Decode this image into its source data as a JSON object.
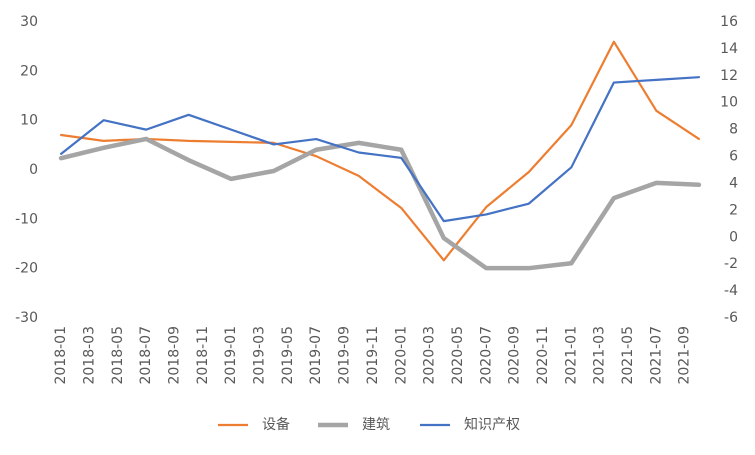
{
  "chart_data": {
    "type": "line",
    "categories": [
      "2018-01",
      null,
      "2018-03",
      null,
      "2018-05",
      null,
      "2018-07",
      null,
      "2018-09",
      null,
      "2018-11",
      null,
      "2019-01",
      null,
      "2019-03",
      null,
      "2019-05",
      null,
      "2019-07",
      null,
      "2019-09",
      null,
      "2019-11",
      null,
      "2020-01",
      null,
      "2020-03",
      null,
      "2020-05",
      null,
      "2020-07",
      null,
      "2020-09",
      null,
      "2020-11",
      null,
      "2021-01",
      null,
      "2021-03",
      null,
      "2021-05",
      null,
      "2021-07",
      null,
      "2021-09",
      null
    ],
    "series": [
      {
        "name": "设备",
        "color": "#ed7d31",
        "width": 2.2,
        "values": [
          7.1,
          null,
          null,
          5.9,
          null,
          null,
          6.3,
          null,
          null,
          5.9,
          null,
          null,
          5.7,
          null,
          null,
          5.5,
          null,
          null,
          2.8,
          null,
          null,
          -1.2,
          null,
          null,
          -7.7,
          null,
          null,
          -18.3,
          null,
          null,
          -7.5,
          null,
          null,
          -0.4,
          null,
          null,
          9.1,
          null,
          null,
          26,
          null,
          null,
          12,
          null,
          null,
          6.3
        ]
      },
      {
        "name": "建筑",
        "color": "#a5a5a5",
        "width": 4.5,
        "values": [
          2.4,
          null,
          null,
          4.5,
          null,
          null,
          6.3,
          null,
          null,
          2,
          null,
          null,
          -1.8,
          null,
          null,
          -0.2,
          null,
          null,
          4.1,
          null,
          null,
          5.5,
          null,
          null,
          4.1,
          null,
          null,
          -13.8,
          null,
          null,
          -19.9,
          null,
          null,
          -19.9,
          null,
          null,
          -18.9,
          null,
          null,
          -5.7,
          null,
          null,
          -2.6,
          null,
          null,
          -3
        ]
      },
      {
        "name": "知识产权",
        "color": "#4472c4",
        "width": 2.2,
        "axis": "y2",
        "values": [
          6.2,
          null,
          null,
          8.7,
          null,
          null,
          8,
          null,
          null,
          9.1,
          null,
          null,
          8,
          null,
          null,
          6.9,
          null,
          null,
          7.3,
          null,
          null,
          6.3,
          null,
          null,
          5.9,
          null,
          null,
          1.2,
          null,
          null,
          1.7,
          null,
          null,
          2.5,
          null,
          null,
          5.2,
          null,
          null,
          11.5,
          null,
          null,
          11.7,
          null,
          null,
          11.9
        ]
      }
    ],
    "ylim": [
      -30,
      30
    ],
    "yticks": [
      -30,
      -20,
      -10,
      0,
      10,
      20,
      30
    ],
    "y2lim": [
      -6,
      16
    ],
    "y2ticks": [
      -6,
      -4,
      -2,
      0,
      2,
      4,
      6,
      8,
      10,
      12,
      14,
      16
    ],
    "connect_gaps": true,
    "grid": false,
    "legend": "bottom"
  }
}
